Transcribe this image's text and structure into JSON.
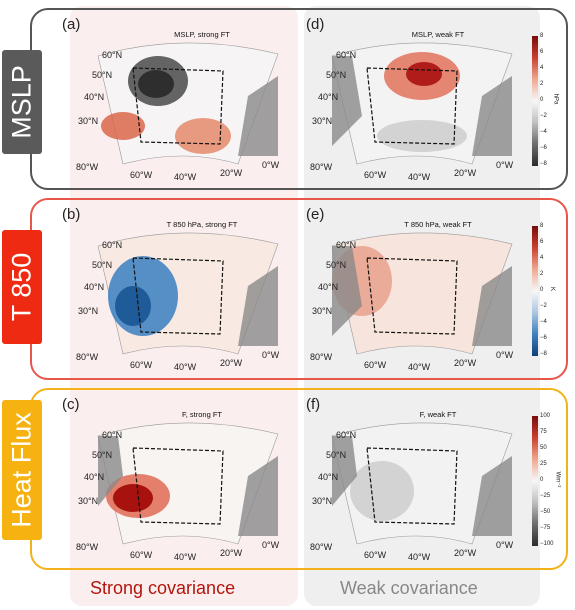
{
  "rows": [
    {
      "id": "mslp",
      "label": "MSLP",
      "color": "#5a5a5a"
    },
    {
      "id": "t850",
      "label": "T 850",
      "color": "#ee2a12"
    },
    {
      "id": "flux",
      "label": "Heat Flux",
      "color": "#f6b210"
    }
  ],
  "panels": [
    {
      "letter": "(a)",
      "title": "MSLP, strong FT"
    },
    {
      "letter": "(d)",
      "title": "MSLP, weak FT"
    },
    {
      "letter": "(b)",
      "title": "T 850 hPa, strong FT"
    },
    {
      "letter": "(e)",
      "title": "T 850 hPa, weak FT"
    },
    {
      "letter": "(c)",
      "title": "F, strong FT"
    },
    {
      "letter": "(f)",
      "title": "F, weak FT"
    }
  ],
  "lat_labels": [
    "60°N",
    "50°N",
    "40°N",
    "30°N"
  ],
  "lon_labels": [
    "80°W",
    "60°W",
    "40°W",
    "20°W",
    "0°W"
  ],
  "colorbars": [
    {
      "unit": "hPa",
      "ticks": [
        "8",
        "6",
        "4",
        "2",
        "0",
        "−2",
        "−4",
        "−6",
        "−8"
      ]
    },
    {
      "unit": "K",
      "ticks": [
        "8",
        "6",
        "4",
        "2",
        "0",
        "−2",
        "−4",
        "−6",
        "−8"
      ]
    },
    {
      "unit": "Wm⁻²",
      "ticks": [
        "100",
        "75",
        "50",
        "25",
        "0",
        "−25",
        "−50",
        "−75",
        "−100"
      ]
    }
  ],
  "captions": {
    "strong": "Strong covariance",
    "weak": "Weak covariance"
  },
  "colors": {
    "red": "#c0392b",
    "blue": "#3a7fc1",
    "land": "#8a8a8a"
  }
}
